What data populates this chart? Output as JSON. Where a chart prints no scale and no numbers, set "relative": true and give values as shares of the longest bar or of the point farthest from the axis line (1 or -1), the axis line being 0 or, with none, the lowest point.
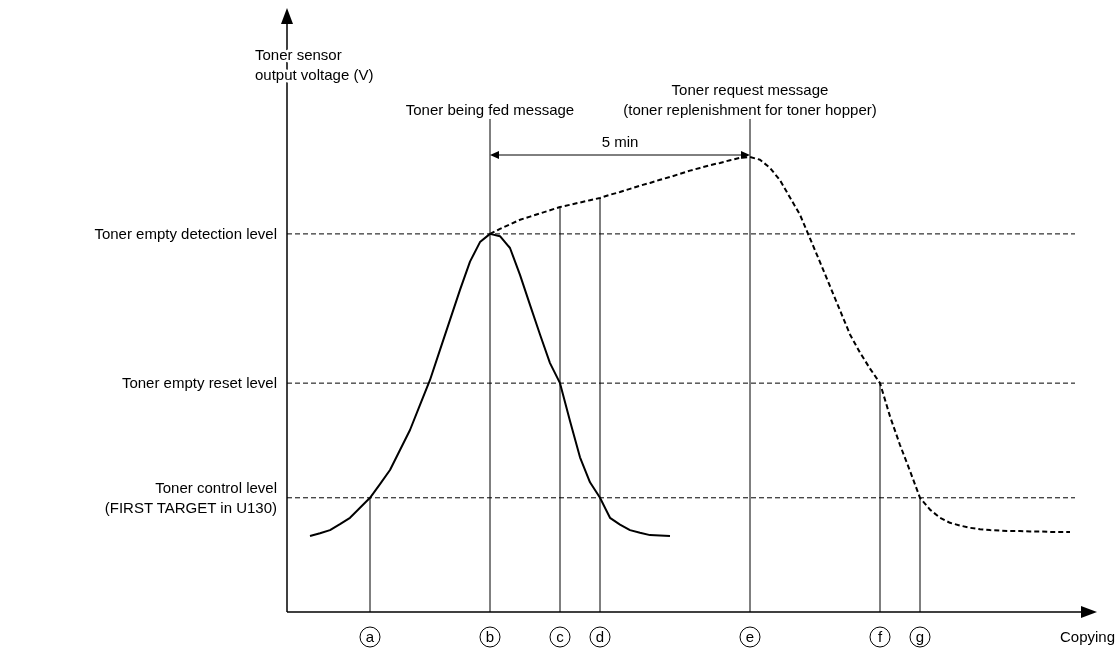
{
  "chart_data": {
    "type": "line",
    "relative": true,
    "xlabel": "Copying",
    "ylabel": "Toner sensor\noutput voltage (V)",
    "categories": [
      null,
      null,
      null,
      null,
      null,
      null,
      null,
      null,
      "a",
      null,
      null,
      null,
      null,
      null,
      null,
      null,
      null,
      null,
      null,
      null,
      "b",
      null,
      null,
      null,
      null,
      null,
      null,
      "c",
      null,
      null,
      null,
      "d",
      null,
      null,
      null,
      null,
      null,
      null,
      null,
      null,
      null,
      null,
      null,
      null,
      null,
      null,
      "e",
      null,
      null,
      null,
      null,
      null,
      null,
      null,
      null,
      null,
      null,
      null,
      null,
      "f",
      null,
      null,
      null,
      "g",
      null,
      null,
      null,
      null,
      null,
      null,
      null,
      null,
      null,
      null,
      null,
      null,
      null,
      null,
      null,
      null
    ],
    "series": [
      {
        "color": "#000000",
        "line_style": "solid",
        "values": [
          null,
          null,
          0.167,
          0.173,
          0.18,
          0.193,
          0.207,
          0.229,
          0.251,
          0.281,
          0.312,
          0.356,
          0.4,
          0.455,
          0.51,
          0.576,
          0.642,
          0.708,
          0.77,
          0.813,
          0.831,
          0.826,
          0.8,
          0.741,
          0.675,
          0.61,
          0.547,
          0.503,
          0.42,
          0.34,
          0.285,
          0.251,
          0.207,
          0.192,
          0.18,
          0.174,
          0.169,
          0.168,
          0.167,
          null,
          null,
          null,
          null,
          null,
          null,
          null,
          null,
          null,
          null,
          null,
          null,
          null,
          null,
          null,
          null,
          null,
          null,
          null,
          null,
          null,
          null,
          null,
          null,
          null,
          null,
          null,
          null,
          null,
          null,
          null,
          null,
          null,
          null,
          null,
          null,
          null,
          null,
          null,
          null,
          null
        ]
      },
      {
        "color": "#000000",
        "line_style": "dashed",
        "values": [
          null,
          null,
          null,
          null,
          null,
          null,
          null,
          null,
          null,
          null,
          null,
          null,
          null,
          null,
          null,
          null,
          null,
          null,
          null,
          null,
          0.831,
          0.842,
          0.852,
          0.862,
          0.869,
          0.876,
          0.883,
          0.89,
          0.895,
          0.9,
          0.905,
          0.91,
          0.917,
          0.923,
          0.93,
          0.937,
          0.943,
          0.95,
          0.956,
          0.963,
          0.97,
          0.976,
          0.982,
          0.987,
          0.993,
          0.998,
          1.0,
          0.994,
          0.976,
          0.949,
          0.911,
          0.873,
          0.821,
          0.769,
          0.716,
          0.663,
          0.61,
          0.57,
          0.535,
          0.503,
          0.43,
          0.367,
          0.31,
          0.251,
          0.225,
          0.207,
          0.196,
          0.19,
          0.185,
          0.182,
          0.18,
          0.179,
          0.178,
          0.178,
          0.177,
          0.177,
          0.176,
          0.176,
          0.176,
          null
        ]
      }
    ],
    "ref_lines": [
      {
        "axis": "y",
        "value": 0.831,
        "label": "Toner empty detection level",
        "line_style": "dashed"
      },
      {
        "axis": "y",
        "value": 0.503,
        "label": "Toner empty reset level",
        "line_style": "dashed"
      },
      {
        "axis": "y",
        "value": 0.251,
        "label": "Toner control level\n(FIRST TARGET in U130)",
        "line_style": "dashed"
      },
      {
        "axis": "x",
        "value": "a",
        "line_style": "solid"
      },
      {
        "axis": "x",
        "value": "b",
        "label": "Toner being fed message",
        "line_style": "solid"
      },
      {
        "axis": "x",
        "value": "c",
        "line_style": "solid"
      },
      {
        "axis": "x",
        "value": "d",
        "line_style": "solid"
      },
      {
        "axis": "x",
        "value": "e",
        "label": "Toner request message\n(toner replenishment for toner hopper)",
        "line_style": "solid"
      },
      {
        "axis": "x",
        "value": "f",
        "line_style": "solid"
      },
      {
        "axis": "x",
        "value": "g",
        "line_style": "solid"
      }
    ],
    "annotations": [
      "5 min"
    ]
  }
}
